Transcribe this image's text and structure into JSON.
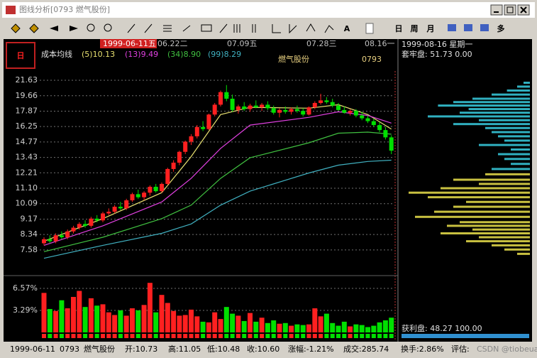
{
  "window": {
    "title": "图线分析[0793 燃气股份]"
  },
  "toolbar": {
    "buttons": [
      "A",
      "日",
      "周",
      "月",
      "多"
    ]
  },
  "chart": {
    "period_icon": "日",
    "dates": [
      "1999-06-11五",
      "06.22二",
      "07.09五",
      "07.28三",
      "08.16一"
    ],
    "ma_title": "成本均线",
    "stock_name": "燃气股份",
    "stock_code": "0793",
    "log_scale": true,
    "ylim": [
      6.94,
      22.9
    ],
    "yticks": [
      {
        "value": 21.63,
        "label": "21.63"
      },
      {
        "value": 19.66,
        "label": "19.66"
      },
      {
        "value": 17.87,
        "label": "17.87"
      },
      {
        "value": 16.25,
        "label": "16.25"
      },
      {
        "value": 14.77,
        "label": "14.77"
      },
      {
        "value": 13.43,
        "label": "13.43"
      },
      {
        "value": 12.21,
        "label": "12.21"
      },
      {
        "value": 11.1,
        "label": "11.10"
      },
      {
        "value": 10.09,
        "label": "10.09"
      },
      9.17,
      8.34,
      7.58
    ],
    "up_color": "#ff2020",
    "down_color": "#00e000",
    "candles": [
      [
        7.9,
        8.2,
        7.8,
        8.1
      ],
      [
        8.1,
        8.3,
        7.9,
        8.0
      ],
      [
        8.0,
        8.4,
        7.9,
        8.3
      ],
      [
        8.3,
        8.5,
        8.1,
        8.2
      ],
      [
        8.2,
        8.6,
        8.1,
        8.5
      ],
      [
        8.5,
        8.8,
        8.4,
        8.7
      ],
      [
        8.7,
        9.0,
        8.6,
        8.9
      ],
      [
        8.9,
        9.1,
        8.7,
        8.8
      ],
      [
        8.8,
        9.3,
        8.7,
        9.2
      ],
      [
        9.2,
        9.4,
        9.0,
        9.1
      ],
      [
        9.1,
        9.6,
        9.0,
        9.5
      ],
      [
        9.5,
        9.8,
        9.4,
        9.6
      ],
      [
        9.6,
        10.0,
        9.5,
        9.9
      ],
      [
        9.9,
        10.2,
        9.7,
        9.8
      ],
      [
        9.8,
        10.4,
        9.7,
        10.3
      ],
      [
        10.3,
        10.8,
        10.2,
        10.7
      ],
      [
        10.7,
        11.0,
        10.4,
        10.5
      ],
      [
        10.5,
        10.9,
        10.3,
        10.8
      ],
      [
        10.8,
        11.3,
        10.6,
        11.2
      ],
      [
        11.2,
        11.4,
        10.8,
        10.9
      ],
      [
        10.9,
        11.5,
        10.8,
        11.4
      ],
      [
        11.4,
        12.6,
        11.3,
        12.5
      ],
      [
        12.5,
        13.2,
        12.3,
        13.0
      ],
      [
        13.0,
        14.0,
        12.8,
        13.9
      ],
      [
        13.9,
        14.9,
        13.7,
        14.8
      ],
      [
        14.8,
        15.5,
        14.5,
        15.3
      ],
      [
        15.3,
        16.4,
        15.1,
        16.2
      ],
      [
        16.2,
        16.8,
        15.8,
        16.0
      ],
      [
        16.0,
        17.6,
        15.9,
        17.5
      ],
      [
        17.5,
        18.8,
        17.3,
        18.6
      ],
      [
        18.6,
        20.3,
        18.4,
        20.1
      ],
      [
        20.1,
        21.0,
        19.0,
        19.3
      ],
      [
        19.3,
        19.8,
        17.8,
        18.0
      ],
      [
        18.0,
        18.6,
        17.6,
        18.4
      ],
      [
        18.4,
        18.9,
        17.9,
        18.1
      ],
      [
        18.1,
        18.7,
        17.8,
        18.5
      ],
      [
        18.5,
        19.1,
        18.2,
        18.3
      ],
      [
        18.3,
        18.8,
        17.9,
        18.6
      ],
      [
        18.6,
        19.0,
        18.0,
        18.2
      ],
      [
        18.2,
        18.5,
        17.5,
        17.7
      ],
      [
        17.7,
        18.2,
        17.2,
        18.0
      ],
      [
        18.0,
        18.4,
        17.6,
        17.8
      ],
      [
        17.8,
        18.3,
        17.5,
        18.1
      ],
      [
        18.1,
        18.5,
        17.7,
        17.9
      ],
      [
        17.9,
        18.2,
        17.3,
        17.5
      ],
      [
        17.5,
        18.4,
        17.4,
        18.3
      ],
      [
        18.3,
        19.0,
        18.1,
        18.8
      ],
      [
        18.8,
        19.9,
        18.6,
        19.1
      ],
      [
        19.1,
        19.5,
        18.7,
        18.9
      ],
      [
        18.9,
        19.3,
        18.3,
        18.5
      ],
      [
        18.5,
        18.8,
        17.9,
        18.0
      ],
      [
        18.0,
        18.4,
        17.6,
        17.7
      ],
      [
        17.7,
        18.1,
        17.4,
        17.9
      ],
      [
        17.9,
        18.1,
        17.2,
        17.4
      ],
      [
        17.4,
        17.8,
        16.9,
        17.1
      ],
      [
        17.1,
        17.4,
        16.6,
        16.8
      ],
      [
        16.8,
        17.1,
        16.2,
        16.4
      ],
      [
        16.4,
        16.7,
        15.7,
        15.9
      ],
      [
        15.9,
        16.2,
        15.0,
        15.2
      ],
      [
        15.2,
        15.4,
        13.7,
        14.0
      ]
    ],
    "ma": [
      {
        "name": "(5)10.13",
        "color": "#e8e070",
        "x": [
          0,
          10,
          20,
          25,
          30,
          35,
          45,
          50,
          55,
          59
        ],
        "values": [
          8.0,
          9.2,
          10.8,
          13.5,
          17.5,
          18.3,
          18.2,
          18.6,
          17.5,
          16.0
        ]
      },
      {
        "name": "(13)9.49",
        "color": "#e040e0",
        "x": [
          0,
          10,
          20,
          25,
          30,
          35,
          45,
          50,
          55,
          59
        ],
        "values": [
          7.8,
          8.8,
          10.2,
          11.8,
          14.2,
          16.4,
          17.2,
          17.8,
          17.4,
          16.6
        ]
      },
      {
        "name": "(34)8.90",
        "color": "#40c040",
        "x": [
          0,
          10,
          20,
          25,
          30,
          35,
          45,
          50,
          55,
          59
        ],
        "values": [
          7.5,
          8.2,
          9.2,
          10.0,
          11.8,
          13.4,
          14.7,
          15.6,
          15.7,
          15.5
        ]
      },
      {
        "name": "(99)8.29",
        "color": "#40b0c0",
        "x": [
          0,
          10,
          20,
          25,
          30,
          35,
          45,
          50,
          55,
          59
        ],
        "values": [
          7.2,
          7.8,
          8.4,
          8.9,
          10.0,
          10.9,
          12.2,
          12.8,
          13.1,
          13.2
        ]
      }
    ],
    "volume": {
      "ylim": [
        0,
        7.74
      ],
      "yticks": [
        {
          "value": 6.57,
          "label": "6.57%"
        },
        {
          "value": 3.29,
          "label": "3.29%"
        }
      ],
      "values": [
        5.9,
        3.5,
        3.2,
        4.8,
        3.6,
        5.3,
        6.2,
        3.8,
        5.1,
        4.0,
        4.2,
        3.0,
        2.6,
        3.3,
        2.5,
        3.6,
        3.3,
        4.1,
        7.4,
        3.0,
        5.6,
        4.4,
        3.2,
        2.5,
        2.6,
        3.4,
        2.4,
        1.6,
        1.5,
        3.0,
        2.0,
        3.8,
        2.8,
        2.5,
        1.7,
        2.9,
        1.6,
        2.2,
        1.4,
        1.8,
        1.3,
        1.4,
        1.0,
        1.2,
        1.1,
        1.2,
        3.6,
        2.4,
        2.8,
        1.4,
        1.0,
        1.6,
        0.9,
        1.2,
        1.1,
        0.8,
        1.0,
        1.5,
        1.8,
        2.2
      ]
    }
  },
  "side_panel": {
    "date": "1999-08-16 星期一",
    "top_label": "套牢盘: 51.73 0.00",
    "bottom_label": "获利盘: 48.27 100.00",
    "xlim": [
      0,
      100
    ],
    "chips": [
      {
        "color": "#30b0c0",
        "prices": [
          21.3,
          20.8,
          20.3,
          19.8,
          19.3,
          18.9,
          18.5,
          18.1,
          17.7,
          17.3,
          16.9,
          16.5,
          16.1,
          15.7,
          15.3,
          14.9,
          14.5,
          14.1,
          13.7,
          13.3,
          12.9,
          12.5
        ],
        "values": [
          5,
          10,
          18,
          30,
          45,
          60,
          72,
          48,
          55,
          80,
          40,
          60,
          35,
          30,
          25,
          20,
          40,
          15,
          25,
          20,
          15,
          30
        ]
      },
      {
        "color": "#c8c040",
        "prices": [
          12.1,
          11.7,
          11.4,
          11.1,
          10.8,
          10.5,
          10.2,
          9.9,
          9.6,
          9.3,
          9.0,
          8.8,
          8.6,
          8.4,
          8.2,
          8.0,
          7.8,
          7.6,
          7.4
        ],
        "values": [
          35,
          60,
          40,
          70,
          95,
          80,
          50,
          60,
          75,
          90,
          55,
          65,
          45,
          70,
          40,
          50,
          30,
          20,
          10
        ]
      }
    ]
  },
  "status": [
    "1999-06-11",
    "0793",
    "燃气股份",
    "开:10.73",
    "高:11.05",
    "低:10.48",
    "收:10.60",
    "涨幅:-1.21%",
    "成交:285.74",
    "换手:2.86%",
    "评估:",
    "CSDN @tiobeuai"
  ]
}
